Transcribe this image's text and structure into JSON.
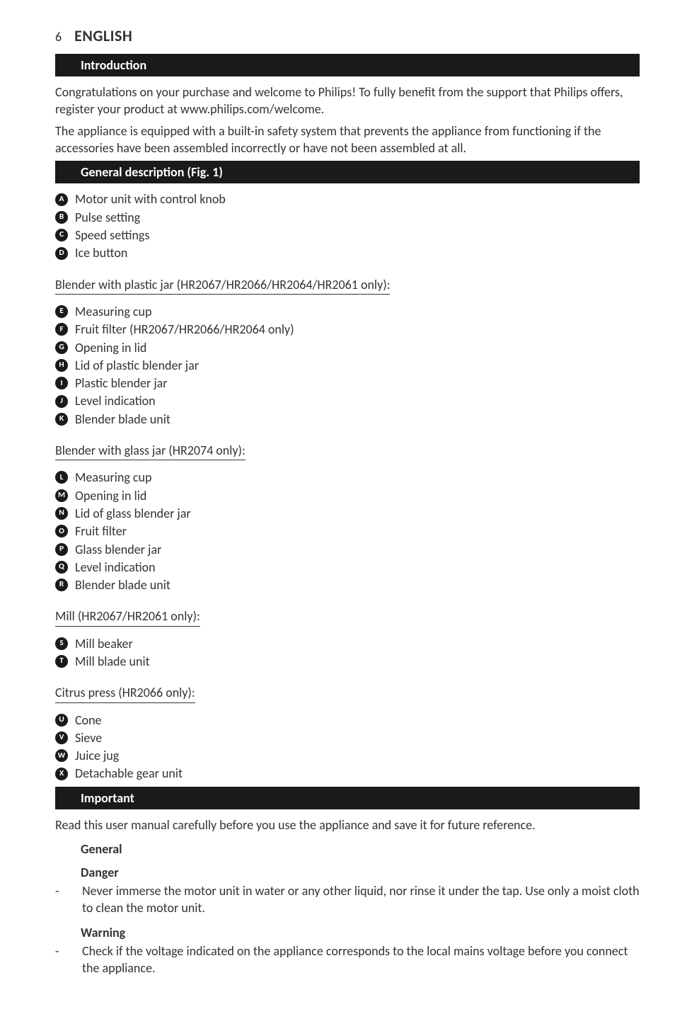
{
  "page_number": "6",
  "language_title": "ENGLISH",
  "sections": {
    "intro": {
      "heading": "Introduction",
      "p1": "Congratulations on your purchase and welcome to Philips! To fully benefit from the support that Philips offers, register your product at www.philips.com/welcome.",
      "p2": "The appliance is equipped with a built-in safety system that prevents the appliance from functioning if the accessories have been assembled incorrectly or have not been assembled at all."
    },
    "general_desc": {
      "heading": "General description (Fig. 1)",
      "top_items": [
        {
          "letter": "A",
          "text": "Motor unit with control knob"
        },
        {
          "letter": "B",
          "text": "Pulse setting"
        },
        {
          "letter": "C",
          "text": "Speed settings"
        },
        {
          "letter": "D",
          "text": "Ice button"
        }
      ],
      "groups": [
        {
          "title": "Blender with plastic jar (HR2067/HR2066/HR2064/HR2061 only):",
          "items": [
            {
              "letter": "E",
              "text": "Measuring cup"
            },
            {
              "letter": "F",
              "text": "Fruit filter (HR2067/HR2066/HR2064 only)"
            },
            {
              "letter": "G",
              "text": "Opening in lid"
            },
            {
              "letter": "H",
              "text": "Lid of plastic blender jar"
            },
            {
              "letter": "I",
              "text": "Plastic blender jar"
            },
            {
              "letter": "J",
              "text": "Level indication"
            },
            {
              "letter": "K",
              "text": "Blender blade unit"
            }
          ]
        },
        {
          "title": "Blender with glass jar (HR2074 only):",
          "items": [
            {
              "letter": "L",
              "text": "Measuring cup"
            },
            {
              "letter": "M",
              "text": "Opening in lid"
            },
            {
              "letter": "N",
              "text": "Lid of glass blender jar"
            },
            {
              "letter": "O",
              "text": "Fruit filter"
            },
            {
              "letter": "P",
              "text": "Glass blender jar"
            },
            {
              "letter": "Q",
              "text": "Level indication"
            },
            {
              "letter": "R",
              "text": "Blender blade unit"
            }
          ]
        },
        {
          "title": "Mill (HR2067/HR2061 only):",
          "items": [
            {
              "letter": "S",
              "text": "Mill beaker"
            },
            {
              "letter": "T",
              "text": "Mill blade unit"
            }
          ]
        },
        {
          "title": "Citrus press (HR2066 only):",
          "items": [
            {
              "letter": "U",
              "text": "Cone"
            },
            {
              "letter": "V",
              "text": "Sieve"
            },
            {
              "letter": "W",
              "text": "Juice jug"
            },
            {
              "letter": "X",
              "text": "Detachable gear unit"
            }
          ]
        }
      ]
    },
    "important": {
      "heading": "Important",
      "p1": "Read this user manual carefully before you use the appliance and save it for future reference.",
      "general_label": "General",
      "danger": {
        "label": "Danger",
        "items": [
          "Never immerse the motor unit in water or any other liquid, nor rinse it under the tap. Use only a moist cloth to clean the motor unit."
        ]
      },
      "warning": {
        "label": "Warning",
        "items": [
          "Check if the voltage indicated on the appliance corresponds to the local mains voltage before you connect the appliance."
        ]
      }
    }
  },
  "colors": {
    "bar_bg": "#1a1a1a",
    "bar_fg": "#ffffff",
    "text": "#333333",
    "page_bg": "#ffffff"
  }
}
